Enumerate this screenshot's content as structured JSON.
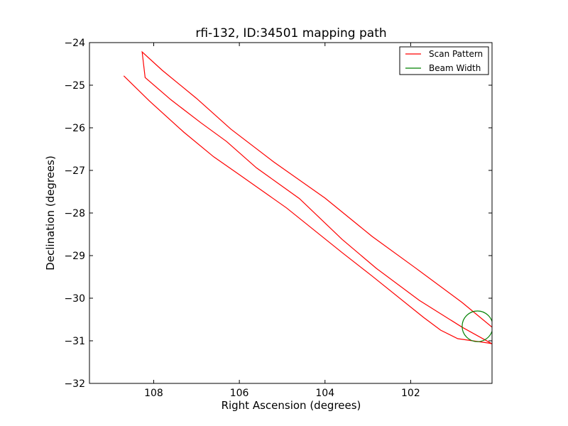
{
  "chart_data": {
    "type": "line",
    "title": "rfi-132, ID:34501 mapping path",
    "xlabel": "Right Ascension (degrees)",
    "ylabel": "Declination (degrees)",
    "xlim": [
      109.5,
      100.1
    ],
    "ylim": [
      -32,
      -24
    ],
    "x_ticks": [
      108,
      106,
      104,
      102
    ],
    "x_tick_labels": [
      "108",
      "106",
      "104",
      "102"
    ],
    "y_ticks": [
      -24,
      -25,
      -26,
      -27,
      -28,
      -29,
      -30,
      -31,
      -32
    ],
    "y_tick_labels": [
      "−24",
      "−25",
      "−26",
      "−27",
      "−28",
      "−29",
      "−30",
      "−31",
      "−32"
    ],
    "grid": false,
    "legend_position": "top-right",
    "series": [
      {
        "name": "Scan Pattern",
        "color": "#ff0000",
        "x": [
          108.7,
          108.1,
          107.3,
          106.6,
          106.0,
          104.9,
          103.6,
          102.9,
          101.7,
          101.3,
          100.9,
          100.2,
          100.1,
          100.8,
          101.8,
          102.8,
          103.6,
          104.6,
          105.6,
          106.3,
          106.9,
          107.6,
          108.2,
          108.27,
          107.8,
          107.0,
          106.2,
          105.2,
          104.0,
          102.9,
          101.9,
          100.8,
          100.1
        ],
        "y": [
          -24.78,
          -25.37,
          -26.1,
          -26.68,
          -27.1,
          -27.88,
          -28.93,
          -29.48,
          -30.45,
          -30.75,
          -30.95,
          -31.05,
          -31.07,
          -30.68,
          -30.05,
          -29.3,
          -28.62,
          -27.66,
          -26.94,
          -26.32,
          -25.88,
          -25.34,
          -24.82,
          -24.22,
          -24.65,
          -25.31,
          -26.03,
          -26.8,
          -27.65,
          -28.55,
          -29.28,
          -30.1,
          -30.68
        ]
      },
      {
        "name": "Beam Width",
        "color": "#008000",
        "shape": "circle",
        "center": [
          100.44,
          -30.66
        ],
        "radius": 0.36
      }
    ]
  }
}
